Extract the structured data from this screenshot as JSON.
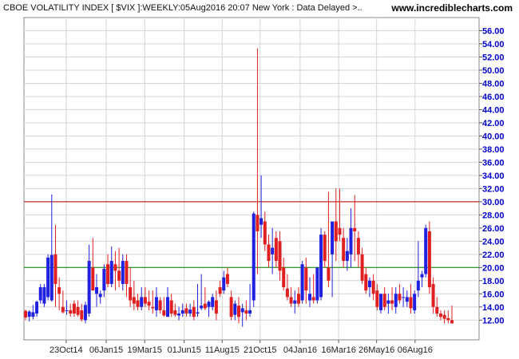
{
  "header": {
    "title": "CBOE VOLATILITY INDEX [ $VIX ]:WEEKLY:05Aug2016 20:07 New York : Data Delayed >..",
    "site": "www.incrediblecharts.com"
  },
  "colors": {
    "up": "#2020e0",
    "down": "#e02020",
    "upper_line": "#b00000",
    "lower_line": "#008000",
    "grid": "#d4d4d4",
    "axis_text": "#0000cc"
  },
  "chart_data": {
    "type": "candlestick",
    "title": "",
    "xlabel": "",
    "ylabel": "",
    "ylim": [
      9.0,
      58.0
    ],
    "y_ticks": [
      "12.00",
      "14.00",
      "16.00",
      "18.00",
      "20.00",
      "22.00",
      "24.00",
      "26.00",
      "28.00",
      "30.00",
      "32.00",
      "34.00",
      "36.00",
      "38.00",
      "40.00",
      "42.00",
      "44.00",
      "46.00",
      "48.00",
      "50.00",
      "52.00",
      "54.00",
      "56.00"
    ],
    "y_axis_position": "right",
    "grid": true,
    "x_ticks": [
      {
        "label": "23Oct14",
        "date": "2014-10-23"
      },
      {
        "label": "06Jan15",
        "date": "2015-01-06"
      },
      {
        "label": "19Mar15",
        "date": "2015-03-19"
      },
      {
        "label": "01Jun15",
        "date": "2015-06-01"
      },
      {
        "label": "11Aug15",
        "date": "2015-08-11"
      },
      {
        "label": "21Oct15",
        "date": "2015-10-21"
      },
      {
        "label": "04Jan16",
        "date": "2016-01-04"
      },
      {
        "label": "16Mar16",
        "date": "2016-03-16"
      },
      {
        "label": "26May16",
        "date": "2016-05-26"
      },
      {
        "label": "06Aug16",
        "date": "2016-08-06"
      }
    ],
    "horizontal_lines": [
      {
        "value": 30.0,
        "color": "#b00000"
      },
      {
        "value": 20.0,
        "color": "#008000"
      }
    ],
    "columns": [
      "date",
      "open",
      "high",
      "low",
      "close"
    ],
    "candles": [
      [
        "2014-08-08",
        13.4,
        13.6,
        12.0,
        12.4
      ],
      [
        "2014-08-15",
        12.5,
        13.5,
        11.8,
        13.3
      ],
      [
        "2014-08-22",
        12.5,
        14.3,
        12.1,
        13.2
      ],
      [
        "2014-08-29",
        13.0,
        15.0,
        12.5,
        14.8
      ],
      [
        "2014-09-05",
        15.0,
        17.5,
        14.5,
        17.0
      ],
      [
        "2014-09-12",
        14.5,
        17.5,
        14.0,
        17.0
      ],
      [
        "2014-09-19",
        15.5,
        22.0,
        15.0,
        21.5
      ],
      [
        "2014-09-26",
        15.0,
        31.1,
        14.8,
        21.9
      ],
      [
        "2014-10-03",
        22.0,
        26.5,
        14.0,
        17.5
      ],
      [
        "2014-10-10",
        17.0,
        18.5,
        13.5,
        16.0
      ],
      [
        "2014-10-17",
        14.0,
        16.5,
        13.0,
        13.2
      ],
      [
        "2014-10-24",
        13.5,
        15.0,
        12.8,
        13.5
      ],
      [
        "2014-10-31",
        13.5,
        14.5,
        12.5,
        13.0
      ],
      [
        "2014-11-07",
        14.5,
        15.0,
        12.5,
        13.0
      ],
      [
        "2014-11-14",
        14.0,
        15.0,
        12.5,
        12.8
      ],
      [
        "2014-11-21",
        13.5,
        14.5,
        11.8,
        12.1
      ],
      [
        "2014-11-28",
        12.0,
        14.8,
        11.5,
        14.3
      ],
      [
        "2014-12-05",
        13.0,
        23.5,
        12.5,
        21.0
      ],
      [
        "2014-12-12",
        20.0,
        24.5,
        16.5,
        16.5
      ],
      [
        "2014-12-19",
        16.0,
        19.0,
        14.0,
        17.0
      ],
      [
        "2014-12-26",
        15.5,
        16.5,
        14.5,
        16.0
      ],
      [
        "2015-01-02",
        16.5,
        20.5,
        15.5,
        19.8
      ],
      [
        "2015-01-09",
        20.5,
        22.0,
        17.0,
        17.5
      ],
      [
        "2015-01-16",
        17.5,
        23.2,
        17.0,
        21.0
      ],
      [
        "2015-01-23",
        20.5,
        22.5,
        16.5,
        19.5
      ],
      [
        "2015-01-30",
        19.5,
        23.0,
        17.0,
        18.0
      ],
      [
        "2015-02-06",
        17.5,
        22.0,
        16.5,
        21.0
      ],
      [
        "2015-02-13",
        21.0,
        22.0,
        15.5,
        17.5
      ],
      [
        "2015-02-20",
        17.0,
        20.0,
        14.0,
        15.0
      ],
      [
        "2015-02-27",
        15.5,
        18.0,
        13.5,
        14.5
      ],
      [
        "2015-03-06",
        15.0,
        16.0,
        13.5,
        14.0
      ],
      [
        "2015-03-13",
        14.0,
        17.0,
        13.5,
        15.5
      ],
      [
        "2015-03-20",
        15.5,
        17.0,
        14.0,
        14.5
      ],
      [
        "2015-03-27",
        14.8,
        16.5,
        13.5,
        14.2
      ],
      [
        "2015-04-03",
        14.0,
        16.5,
        13.0,
        13.8
      ],
      [
        "2015-04-10",
        13.5,
        17.0,
        12.5,
        15.5
      ],
      [
        "2015-04-17",
        15.0,
        15.5,
        13.0,
        13.5
      ],
      [
        "2015-04-24",
        13.5,
        15.5,
        12.5,
        12.7
      ],
      [
        "2015-05-01",
        12.5,
        17.0,
        12.5,
        15.5
      ],
      [
        "2015-05-08",
        15.0,
        16.0,
        12.5,
        13.0
      ],
      [
        "2015-05-15",
        13.5,
        14.5,
        12.5,
        12.8
      ],
      [
        "2015-05-22",
        12.7,
        14.0,
        12.0,
        13.0
      ],
      [
        "2015-05-29",
        13.0,
        14.5,
        12.5,
        13.5
      ],
      [
        "2015-06-05",
        13.8,
        14.5,
        12.5,
        13.0
      ],
      [
        "2015-06-12",
        13.0,
        14.5,
        12.5,
        13.6
      ],
      [
        "2015-06-19",
        14.0,
        15.0,
        12.0,
        12.5
      ],
      [
        "2015-06-26",
        13.0,
        17.5,
        12.5,
        13.2
      ],
      [
        "2015-07-03",
        13.8,
        19.0,
        13.5,
        14.2
      ],
      [
        "2015-07-10",
        14.5,
        17.0,
        13.5,
        13.8
      ],
      [
        "2015-07-17",
        14.0,
        15.0,
        12.5,
        14.8
      ],
      [
        "2015-07-24",
        14.0,
        16.0,
        13.5,
        15.5
      ],
      [
        "2015-07-31",
        15.0,
        16.5,
        12.0,
        13.0
      ],
      [
        "2015-08-07",
        17.0,
        18.0,
        15.5,
        16.0
      ],
      [
        "2015-08-14",
        16.5,
        19.5,
        16.0,
        18.5
      ],
      [
        "2015-08-21",
        19.0,
        20.0,
        17.0,
        17.5
      ],
      [
        "2015-08-28",
        15.5,
        16.5,
        12.0,
        12.5
      ],
      [
        "2015-09-04",
        12.8,
        15.0,
        12.0,
        14.5
      ],
      [
        "2015-09-11",
        14.2,
        15.5,
        11.5,
        12.5
      ],
      [
        "2015-09-18",
        13.2,
        14.5,
        11.0,
        13.8
      ],
      [
        "2015-09-25",
        13.5,
        15.0,
        12.0,
        13.0
      ],
      [
        "2015-10-02",
        13.0,
        17.5,
        12.5,
        13.5
      ],
      [
        "2015-10-09",
        15.0,
        28.5,
        14.0,
        28.2
      ],
      [
        "2015-10-16",
        28.0,
        53.3,
        19.0,
        25.5
      ],
      [
        "2015-10-23",
        26.5,
        34.0,
        24.5,
        27.5
      ],
      [
        "2015-10-30",
        27.0,
        28.5,
        22.5,
        23.5
      ],
      [
        "2015-11-06",
        23.5,
        25.0,
        20.0,
        21.0
      ],
      [
        "2015-11-13",
        22.0,
        26.0,
        19.0,
        23.0
      ],
      [
        "2015-11-20",
        24.5,
        25.5,
        20.0,
        21.0
      ],
      [
        "2015-11-27",
        24.0,
        25.5,
        18.0,
        19.5
      ],
      [
        "2015-12-04",
        20.0,
        21.5,
        16.5,
        17.0
      ],
      [
        "2015-12-11",
        16.8,
        19.0,
        15.0,
        15.5
      ],
      [
        "2015-12-18",
        15.5,
        17.0,
        14.0,
        14.5
      ],
      [
        "2015-12-25",
        14.5,
        16.5,
        13.0,
        15.0
      ],
      [
        "2016-01-01",
        16.0,
        17.0,
        14.0,
        14.5
      ],
      [
        "2016-01-08",
        15.0,
        21.0,
        14.5,
        20.5
      ],
      [
        "2016-01-15",
        20.0,
        21.5,
        14.5,
        16.5
      ],
      [
        "2016-01-22",
        15.0,
        18.5,
        14.0,
        16.0
      ],
      [
        "2016-01-29",
        15.5,
        19.0,
        14.5,
        15.0
      ],
      [
        "2016-02-05",
        15.0,
        20.0,
        14.5,
        20.0
      ],
      [
        "2016-02-12",
        15.5,
        26.0,
        15.0,
        25.0
      ],
      [
        "2016-02-19",
        25.0,
        25.5,
        20.0,
        21.0
      ],
      [
        "2016-02-26",
        20.0,
        31.5,
        17.0,
        18.0
      ],
      [
        "2016-03-04",
        22.0,
        27.0,
        15.5,
        27.0
      ],
      [
        "2016-03-11",
        27.0,
        32.0,
        21.0,
        24.0
      ],
      [
        "2016-03-18",
        26.0,
        32.0,
        24.0,
        25.0
      ],
      [
        "2016-03-25",
        24.5,
        26.0,
        20.0,
        21.0
      ],
      [
        "2016-04-01",
        21.0,
        24.5,
        19.5,
        22.5
      ],
      [
        "2016-04-08",
        22.0,
        29.0,
        20.0,
        26.0
      ],
      [
        "2016-04-15",
        26.0,
        31.0,
        21.0,
        25.5
      ],
      [
        "2016-04-22",
        24.5,
        25.5,
        20.0,
        22.0
      ],
      [
        "2016-04-29",
        22.0,
        23.0,
        17.5,
        18.0
      ],
      [
        "2016-05-06",
        19.0,
        20.0,
        16.0,
        16.5
      ],
      [
        "2016-05-13",
        17.0,
        18.5,
        15.5,
        18.0
      ],
      [
        "2016-05-20",
        18.0,
        19.0,
        15.0,
        16.0
      ],
      [
        "2016-05-27",
        16.5,
        17.5,
        13.5,
        14.0
      ],
      [
        "2016-06-03",
        13.5,
        16.0,
        13.0,
        16.0
      ],
      [
        "2016-06-10",
        16.0,
        17.0,
        13.5,
        14.0
      ],
      [
        "2016-06-17",
        14.5,
        16.0,
        13.0,
        15.0
      ],
      [
        "2016-06-24",
        15.0,
        17.0,
        13.5,
        14.5
      ],
      [
        "2016-07-01",
        14.0,
        17.0,
        13.0,
        16.0
      ],
      [
        "2016-07-08",
        16.0,
        17.5,
        14.5,
        15.0
      ],
      [
        "2016-07-15",
        15.5,
        17.0,
        14.0,
        15.5
      ],
      [
        "2016-07-22",
        14.8,
        16.5,
        14.0,
        15.5
      ],
      [
        "2016-07-29",
        15.5,
        17.5,
        13.0,
        13.8
      ],
      [
        "2016-08-05",
        13.5,
        16.5,
        13.0,
        16.0
      ],
      [
        "2016-08-12",
        16.5,
        24.0,
        15.5,
        18.0
      ],
      [
        "2016-08-19",
        18.5,
        19.5,
        17.0,
        19.0
      ],
      [
        "2016-08-26",
        19.0,
        26.5,
        18.5,
        26.0
      ],
      [
        "2016-09-02",
        25.5,
        27.0,
        16.0,
        17.0
      ],
      [
        "2016-09-09",
        17.5,
        18.5,
        13.0,
        14.0
      ],
      [
        "2016-09-16",
        14.0,
        15.5,
        12.5,
        13.0
      ],
      [
        "2016-09-23",
        13.0,
        13.5,
        12.0,
        12.5
      ],
      [
        "2016-09-30",
        12.8,
        13.5,
        11.5,
        12.2
      ],
      [
        "2016-10-07",
        12.3,
        13.5,
        11.5,
        12.0
      ],
      [
        "2016-10-14",
        12.0,
        14.2,
        11.5,
        11.5
      ]
    ]
  }
}
